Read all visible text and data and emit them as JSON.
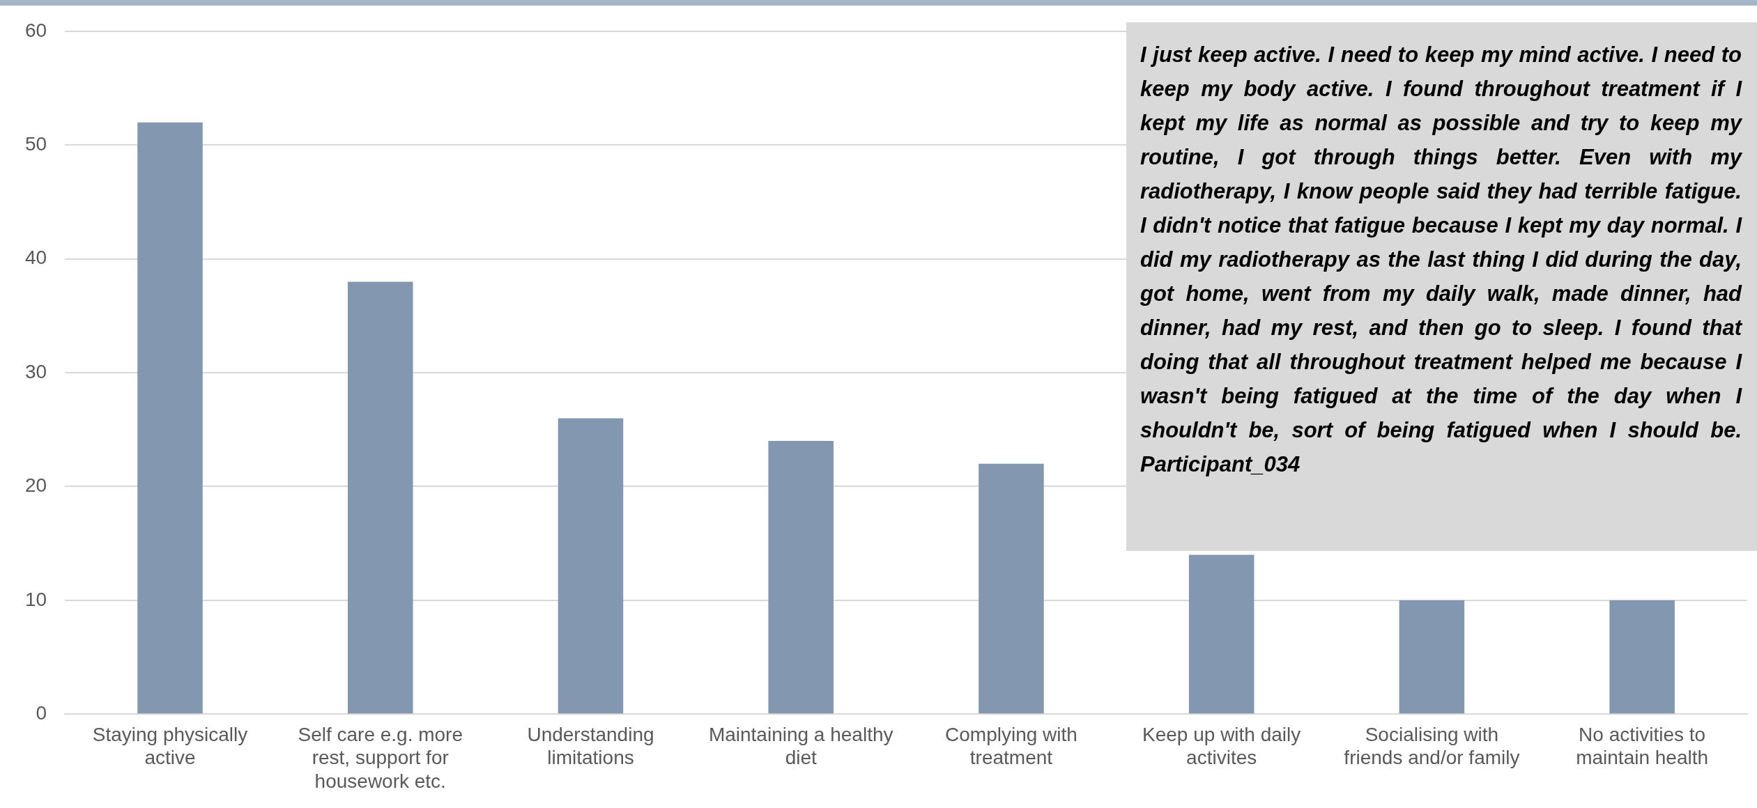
{
  "chart_data": {
    "type": "bar",
    "categories": [
      "Staying physically active",
      "Self care e.g. more rest, support for housework etc.",
      "Understanding limitations",
      "Maintaining a healthy diet",
      "Complying with treatment",
      "Keep up with daily activites",
      "Socialising with friends and/or family",
      "No activities to maintain health"
    ],
    "values": [
      52,
      38,
      26,
      24,
      22,
      14,
      10,
      10
    ],
    "color": "#8497b0",
    "ylim": [
      0,
      60
    ],
    "yticks": [
      0,
      10,
      20,
      30,
      40,
      50,
      60
    ],
    "grid": "y",
    "legend": false,
    "annotations": [
      "I just keep active. I need to keep my mind active. I need to keep my body active. I found throughout treatment if I kept my life as normal as possible and try to keep my routine, I got through things better. Even with my radiotherapy, I know people said they had terrible fatigue. I didn't notice that fatigue because I kept my day normal. I did my radiotherapy as the last thing I did during the day, got home, went from my daily walk, made dinner, had dinner, had my rest, and then go to sleep. I found that doing that all throughout treatment helped me because I wasn't being fatigued at the time of the day when I shouldn't be, sort of being fatigued when I should be. Participant_034"
    ]
  }
}
